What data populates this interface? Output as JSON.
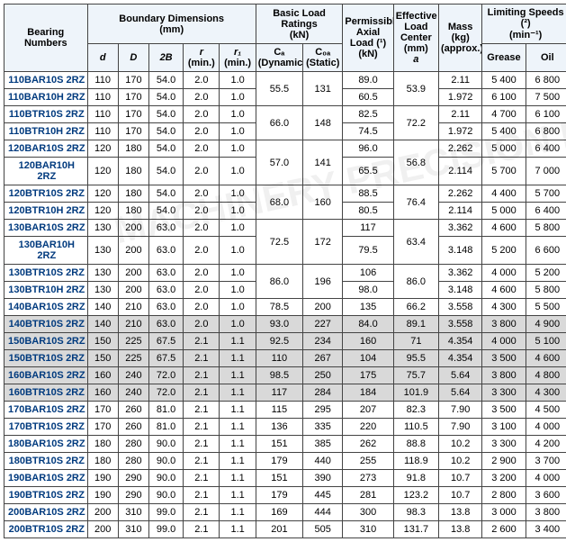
{
  "watermark": "MACHINERY PRECISION BEARING",
  "hdr": {
    "bn": "Bearing Numbers",
    "bd": "Boundary Dimensions",
    "bd_u": "(mm)",
    "br": "Basic Load Ratings",
    "br_u": "(kN)",
    "pal": "Permissible Axial",
    "pal2": "Load (¹)",
    "pal_u": "(kN)",
    "elc": "Effective Load Center",
    "elc_u": "(mm)",
    "elc_s": "a",
    "m": "Mass",
    "m_u": "(kg)",
    "m_s": "(approx.)",
    "ls": "Limiting Speeds (²)",
    "ls_u": "(min⁻¹)",
    "d": "d",
    "D": "D",
    "B": "2B",
    "r": "r",
    "r_s": "(min.)",
    "r1": "r₁",
    "r1_s": "(min.)",
    "ca": "Cₐ",
    "ca_s": "(Dynamic)",
    "coa": "C₀ₐ",
    "coa_s": "(Static)",
    "g": "Grease",
    "o": "Oil"
  },
  "rows": [
    {
      "n": "110BAR10S 2RZ",
      "d": "110",
      "D": "170",
      "B": "54.0",
      "r": "2.0",
      "r1": "1.0",
      "ca": "55.5",
      "coa": "131",
      "p": "89.0",
      "e": "53.9",
      "m": "2.11",
      "g": "5 400",
      "o": "6 800",
      "caspan": 2,
      "coaspan": 2,
      "espan": 2
    },
    {
      "n": "110BAR10H 2RZ",
      "d": "110",
      "D": "170",
      "B": "54.0",
      "r": "2.0",
      "r1": "1.0",
      "p": "60.5",
      "m": "1.972",
      "g": "6 100",
      "o": "7 500"
    },
    {
      "n": "110BTR10S 2RZ",
      "d": "110",
      "D": "170",
      "B": "54.0",
      "r": "2.0",
      "r1": "1.0",
      "ca": "66.0",
      "coa": "148",
      "p": "82.5",
      "e": "72.2",
      "m": "2.11",
      "g": "4 700",
      "o": "6 100",
      "caspan": 2,
      "coaspan": 2,
      "espan": 2
    },
    {
      "n": "110BTR10H 2RZ",
      "d": "110",
      "D": "170",
      "B": "54.0",
      "r": "2.0",
      "r1": "1.0",
      "p": "74.5",
      "m": "1.972",
      "g": "5 400",
      "o": "6 800"
    },
    {
      "n": "120BAR10S 2RZ",
      "d": "120",
      "D": "180",
      "B": "54.0",
      "r": "2.0",
      "r1": "1.0",
      "ca": "57.0",
      "coa": "141",
      "p": "96.0",
      "e": "56.8",
      "m": "2.262",
      "g": "5 000",
      "o": "6 400",
      "caspan": 2,
      "coaspan": 2,
      "espan": 2
    },
    {
      "n": "120BAR10H 2RZ",
      "d": "120",
      "D": "180",
      "B": "54.0",
      "r": "2.0",
      "r1": "1.0",
      "p": "65.5",
      "m": "2.114",
      "g": "5 700",
      "o": "7 000"
    },
    {
      "n": "120BTR10S 2RZ",
      "d": "120",
      "D": "180",
      "B": "54.0",
      "r": "2.0",
      "r1": "1.0",
      "ca": "68.0",
      "coa": "160",
      "p": "88.5",
      "e": "76.4",
      "m": "2.262",
      "g": "4 400",
      "o": "5 700",
      "caspan": 2,
      "coaspan": 2,
      "espan": 2
    },
    {
      "n": "120BTR10H 2RZ",
      "d": "120",
      "D": "180",
      "B": "54.0",
      "r": "2.0",
      "r1": "1.0",
      "p": "80.5",
      "m": "2.114",
      "g": "5 000",
      "o": "6 400"
    },
    {
      "n": "130BAR10S 2RZ",
      "d": "130",
      "D": "200",
      "B": "63.0",
      "r": "2.0",
      "r1": "1.0",
      "ca": "72.5",
      "coa": "172",
      "p": "117",
      "e": "63.4",
      "m": "3.362",
      "g": "4 600",
      "o": "5 800",
      "caspan": 2,
      "coaspan": 2,
      "espan": 2
    },
    {
      "n": "130BAR10H 2RZ",
      "d": "130",
      "D": "200",
      "B": "63.0",
      "r": "2.0",
      "r1": "1.0",
      "p": "79.5",
      "m": "3.148",
      "g": "5 200",
      "o": "6 600"
    },
    {
      "n": "130BTR10S 2RZ",
      "d": "130",
      "D": "200",
      "B": "63.0",
      "r": "2.0",
      "r1": "1.0",
      "ca": "86.0",
      "coa": "196",
      "p": "106",
      "e": "86.0",
      "m": "3.362",
      "g": "4 000",
      "o": "5 200",
      "caspan": 2,
      "coaspan": 2,
      "espan": 2
    },
    {
      "n": "130BTR10H 2RZ",
      "d": "130",
      "D": "200",
      "B": "63.0",
      "r": "2.0",
      "r1": "1.0",
      "p": "98.0",
      "m": "3.148",
      "g": "4 600",
      "o": "5 800"
    },
    {
      "n": "140BAR10S 2RZ",
      "d": "140",
      "D": "210",
      "B": "63.0",
      "r": "2.0",
      "r1": "1.0",
      "ca": "78.5",
      "coa": "200",
      "p": "135",
      "e": "66.2",
      "m": "3.558",
      "g": "4 300",
      "o": "5 500"
    },
    {
      "n": "140BTR10S 2RZ",
      "d": "140",
      "D": "210",
      "B": "63.0",
      "r": "2.0",
      "r1": "1.0",
      "ca": "93.0",
      "coa": "227",
      "p": "84.0",
      "e": "89.1",
      "m": "3.558",
      "g": "3 800",
      "o": "4 900",
      "grey": 1
    },
    {
      "n": "150BAR10S 2RZ",
      "d": "150",
      "D": "225",
      "B": "67.5",
      "r": "2.1",
      "r1": "1.1",
      "ca": "92.5",
      "coa": "234",
      "p": "160",
      "e": "71",
      "m": "4.354",
      "g": "4 000",
      "o": "5 100",
      "grey": 1
    },
    {
      "n": "150BTR10S 2RZ",
      "d": "150",
      "D": "225",
      "B": "67.5",
      "r": "2.1",
      "r1": "1.1",
      "ca": "110",
      "coa": "267",
      "p": "104",
      "e": "95.5",
      "m": "4.354",
      "g": "3 500",
      "o": "4 600",
      "grey": 1
    },
    {
      "n": "160BAR10S 2RZ",
      "d": "160",
      "D": "240",
      "B": "72.0",
      "r": "2.1",
      "r1": "1.1",
      "ca": "98.5",
      "coa": "250",
      "p": "175",
      "e": "75.7",
      "m": "5.64",
      "g": "3 800",
      "o": "4 800",
      "grey": 1
    },
    {
      "n": "160BTR10S 2RZ",
      "d": "160",
      "D": "240",
      "B": "72.0",
      "r": "2.1",
      "r1": "1.1",
      "ca": "117",
      "coa": "284",
      "p": "184",
      "e": "101.9",
      "m": "5.64",
      "g": "3 300",
      "o": "4 300",
      "grey": 1
    },
    {
      "n": "170BAR10S 2RZ",
      "d": "170",
      "D": "260",
      "B": "81.0",
      "r": "2.1",
      "r1": "1.1",
      "ca": "115",
      "coa": "295",
      "p": "207",
      "e": "82.3",
      "m": "7.90",
      "g": "3 500",
      "o": "4 500"
    },
    {
      "n": "170BTR10S 2RZ",
      "d": "170",
      "D": "260",
      "B": "81.0",
      "r": "2.1",
      "r1": "1.1",
      "ca": "136",
      "coa": "335",
      "p": "220",
      "e": "110.5",
      "m": "7.90",
      "g": "3 100",
      "o": "4 000"
    },
    {
      "n": "180BAR10S 2RZ",
      "d": "180",
      "D": "280",
      "B": "90.0",
      "r": "2.1",
      "r1": "1.1",
      "ca": "151",
      "coa": "385",
      "p": "262",
      "e": "88.8",
      "m": "10.2",
      "g": "3 300",
      "o": "4 200"
    },
    {
      "n": "180BTR10S 2RZ",
      "d": "180",
      "D": "280",
      "B": "90.0",
      "r": "2.1",
      "r1": "1.1",
      "ca": "179",
      "coa": "440",
      "p": "255",
      "e": "118.9",
      "m": "10.2",
      "g": "2 900",
      "o": "3 700"
    },
    {
      "n": "190BAR10S 2RZ",
      "d": "190",
      "D": "290",
      "B": "90.0",
      "r": "2.1",
      "r1": "1.1",
      "ca": "151",
      "coa": "390",
      "p": "273",
      "e": "91.8",
      "m": "10.7",
      "g": "3 200",
      "o": "4 000"
    },
    {
      "n": "190BTR10S 2RZ",
      "d": "190",
      "D": "290",
      "B": "90.0",
      "r": "2.1",
      "r1": "1.1",
      "ca": "179",
      "coa": "445",
      "p": "281",
      "e": "123.2",
      "m": "10.7",
      "g": "2 800",
      "o": "3 600"
    },
    {
      "n": "200BAR10S 2RZ",
      "d": "200",
      "D": "310",
      "B": "99.0",
      "r": "2.1",
      "r1": "1.1",
      "ca": "169",
      "coa": "444",
      "p": "300",
      "e": "98.3",
      "m": "13.8",
      "g": "3 000",
      "o": "3 800"
    },
    {
      "n": "200BTR10S 2RZ",
      "d": "200",
      "D": "310",
      "B": "99.0",
      "r": "2.1",
      "r1": "1.1",
      "ca": "201",
      "coa": "505",
      "p": "310",
      "e": "131.7",
      "m": "13.8",
      "g": "2 600",
      "o": "3 400"
    }
  ]
}
